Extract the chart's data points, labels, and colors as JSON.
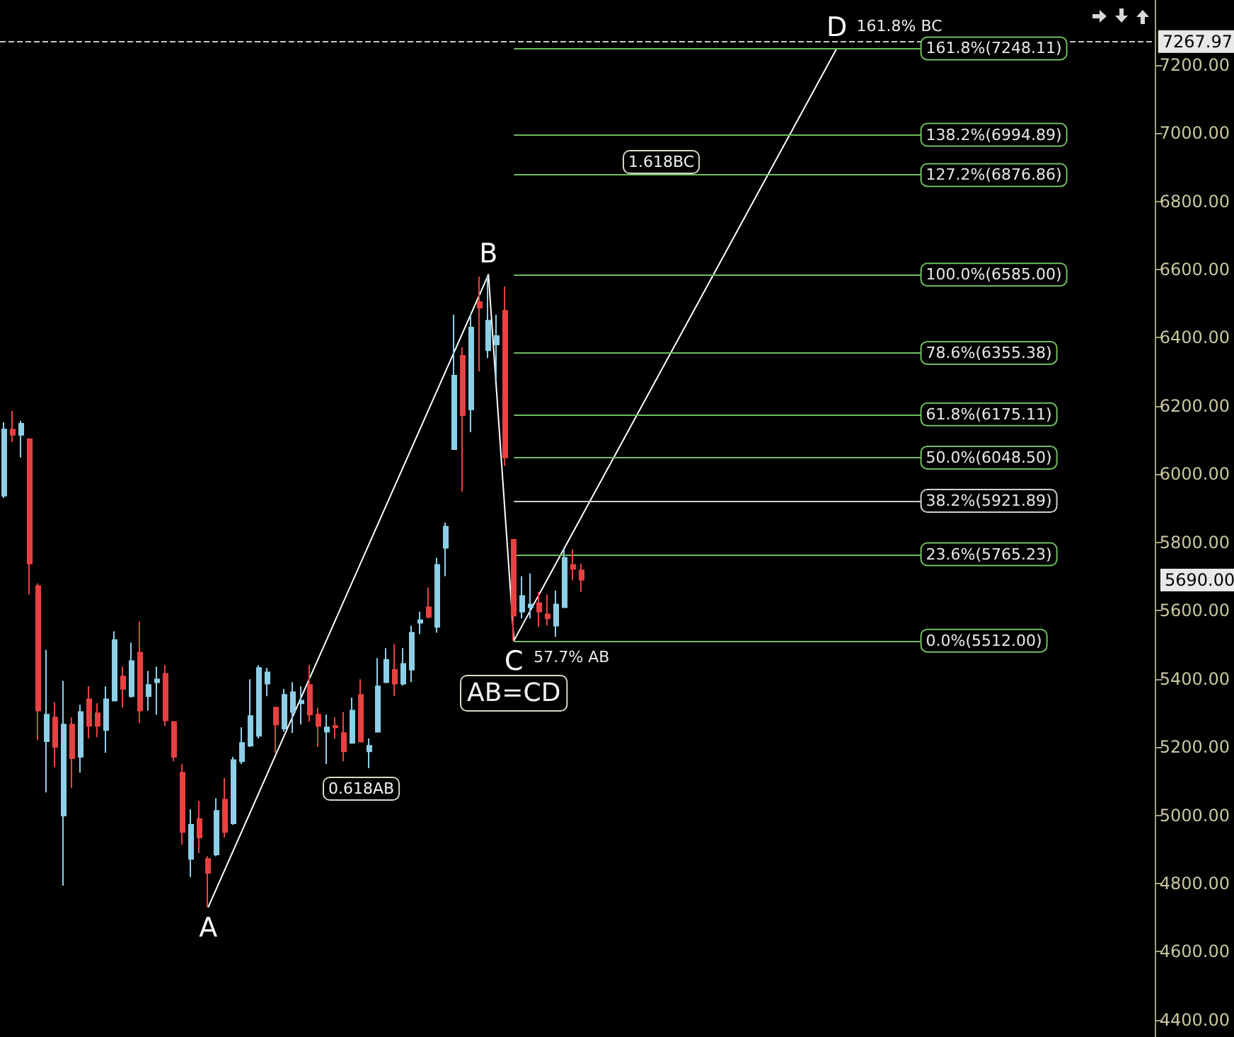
{
  "chart_data": {
    "type": "candlestick",
    "tick_labels": "y",
    "categories": [
      null,
      null,
      null,
      null,
      null,
      null,
      null,
      null,
      null,
      null,
      null,
      null,
      null,
      null,
      null,
      null,
      null,
      null,
      null,
      null,
      null,
      null,
      null,
      null,
      null,
      null,
      null,
      null,
      null,
      null,
      null,
      null,
      null,
      null,
      null,
      null,
      null,
      null,
      null,
      null,
      null,
      null,
      null,
      null,
      null,
      null,
      null,
      null,
      null,
      null,
      null,
      null,
      null,
      null,
      null,
      null,
      null,
      null,
      null,
      null,
      null,
      null,
      null,
      null,
      null,
      null,
      null,
      null,
      null,
      null,
      null,
      null,
      null,
      null,
      null,
      null,
      null,
      null,
      null,
      null,
      null,
      null,
      null,
      null,
      null,
      null,
      null,
      null,
      null,
      null,
      null,
      null,
      null,
      null,
      null,
      null,
      null,
      null,
      null,
      null,
      null,
      null,
      null,
      null,
      null,
      null,
      null,
      null,
      null,
      null,
      null,
      null,
      null,
      null,
      null,
      null,
      null,
      null,
      null,
      null,
      null,
      null,
      null,
      null,
      null,
      null,
      null,
      null,
      null,
      null,
      null,
      null,
      null,
      null,
      null,
      null
    ],
    "ylim": [
      4350,
      7390
    ],
    "yticks": [
      {
        "value": 4400,
        "label": "4400.00"
      },
      {
        "value": 4600,
        "label": "4600.00"
      },
      {
        "value": 4800,
        "label": "4800.00"
      },
      {
        "value": 5000,
        "label": "5000.00"
      },
      {
        "value": 5200,
        "label": "5200.00"
      },
      {
        "value": 5400,
        "label": "5400.00"
      },
      {
        "value": 5600,
        "label": "5600.00"
      },
      {
        "value": 5800,
        "label": "5800.00"
      },
      {
        "value": 6000,
        "label": "6000.00"
      },
      {
        "value": 6200,
        "label": "6200.00"
      },
      {
        "value": 6400,
        "label": "6400.00"
      },
      {
        "value": 6600,
        "label": "6600.00"
      },
      {
        "value": 6800,
        "label": "6800.00"
      },
      {
        "value": 7000,
        "label": "7000.00"
      },
      {
        "value": 7200,
        "label": "7200.00"
      }
    ],
    "series": [
      {
        "colors": [
          "#8ecfe8",
          "#e84141",
          "#8ecfe8",
          "#e84141",
          "#e84141",
          "#8ecfe8",
          "#e84141",
          "#8ecfe8",
          "#e84141",
          "#8ecfe8",
          "#e84141",
          "#e84141",
          "#8ecfe8",
          "#8ecfe8",
          "#e84141",
          "#8ecfe8",
          "#e84141",
          "#8ecfe8",
          "#8ecfe8",
          "#e84141",
          "#e84141",
          "#e84141",
          "#8ecfe8",
          "#e84141",
          "#e84141",
          "#8ecfe8",
          "#e84141",
          "#8ecfe8",
          "#8ecfe8",
          "#8ecfe8",
          "#8ecfe8",
          "#8ecfe8",
          "#e84141",
          "#8ecfe8",
          "#8ecfe8",
          "#8ecfe8",
          "#e84141",
          "#e84141",
          "#8ecfe8",
          "#e84141",
          "#e84141",
          "#8ecfe8",
          "#e84141",
          "#8ecfe8",
          "#8ecfe8",
          "#8ecfe8",
          "#e84141",
          "#8ecfe8",
          "#8ecfe8",
          "#8ecfe8",
          "#e84141",
          "#8ecfe8",
          "#8ecfe8",
          "#8ecfe8",
          "#e84141",
          "#8ecfe8",
          "#e84141",
          "#8ecfe8",
          "#8ecfe8",
          "#e84141",
          "#e84141",
          "#8ecfe8",
          "#8ecfe8",
          "#e84141",
          "#e84141",
          "#8ecfe8",
          "#8ecfe8",
          "#e84141",
          "#e84141",
          null,
          null,
          null,
          null,
          null,
          null,
          null,
          null,
          null,
          null,
          null,
          null,
          null,
          null,
          null,
          null,
          null,
          null,
          null,
          null,
          null,
          null,
          null,
          null,
          null,
          null,
          null,
          null,
          null,
          null,
          null,
          null,
          null,
          null,
          null,
          null,
          null,
          null,
          null,
          null,
          null,
          null,
          null,
          null,
          null,
          null,
          null,
          null,
          null,
          null,
          null,
          null,
          null,
          null,
          null,
          null,
          null,
          null,
          null,
          null,
          null,
          null,
          null,
          null,
          null,
          null,
          null
        ],
        "ohlc": [
          [
            5937,
            6152,
            5930,
            6131
          ],
          [
            6131,
            6185,
            6094,
            6115
          ],
          [
            6115,
            6156,
            6049,
            6148
          ],
          [
            6103,
            6103,
            5647,
            5738
          ],
          [
            5672,
            5680,
            5220,
            5307
          ],
          [
            5217,
            5485,
            5067,
            5295
          ],
          [
            5287,
            5332,
            5142,
            5200
          ],
          [
            4999,
            5394,
            4794,
            5266
          ],
          [
            5266,
            5287,
            5080,
            5167
          ],
          [
            5171,
            5324,
            5125,
            5303
          ],
          [
            5340,
            5378,
            5225,
            5262
          ],
          [
            5299,
            5328,
            5229,
            5262
          ],
          [
            5250,
            5378,
            5183,
            5340
          ],
          [
            5336,
            5539,
            5336,
            5514
          ],
          [
            5407,
            5436,
            5316,
            5370
          ],
          [
            5349,
            5506,
            5345,
            5452
          ],
          [
            5477,
            5568,
            5270,
            5307
          ],
          [
            5349,
            5423,
            5307,
            5382
          ],
          [
            5390,
            5436,
            5295,
            5398
          ],
          [
            5415,
            5440,
            5262,
            5278
          ],
          [
            5274,
            5274,
            5158,
            5171
          ],
          [
            5125,
            5150,
            4914,
            4951
          ],
          [
            4872,
            5017,
            4819,
            4972
          ],
          [
            4989,
            5042,
            4889,
            4935
          ],
          [
            4872,
            4880,
            4730,
            4831
          ],
          [
            4885,
            5050,
            4880,
            5013
          ],
          [
            5046,
            5109,
            4935,
            4951
          ],
          [
            4976,
            5171,
            4972,
            5162
          ],
          [
            5158,
            5258,
            5150,
            5212
          ],
          [
            5204,
            5399,
            5200,
            5291
          ],
          [
            5233,
            5440,
            5225,
            5432
          ],
          [
            5386,
            5432,
            5349,
            5419
          ],
          [
            5316,
            5316,
            5183,
            5266
          ],
          [
            5254,
            5370,
            5245,
            5353
          ],
          [
            5303,
            5390,
            5241,
            5361
          ],
          [
            5328,
            5378,
            5266,
            5336
          ],
          [
            5382,
            5440,
            5274,
            5295
          ],
          [
            5295,
            5316,
            5200,
            5262
          ],
          [
            5245,
            5295,
            5150,
            5258
          ],
          [
            5262,
            5287,
            5225,
            5258
          ],
          [
            5241,
            5303,
            5158,
            5187
          ],
          [
            5212,
            5345,
            5212,
            5307
          ],
          [
            5353,
            5399,
            5216,
            5216
          ],
          [
            5187,
            5225,
            5138,
            5204
          ],
          [
            5245,
            5461,
            5245,
            5378
          ],
          [
            5390,
            5490,
            5390,
            5456
          ],
          [
            5427,
            5502,
            5349,
            5386
          ],
          [
            5386,
            5490,
            5380,
            5444
          ],
          [
            5427,
            5556,
            5390,
            5535
          ],
          [
            5564,
            5597,
            5531,
            5572
          ],
          [
            5610,
            5668,
            5577,
            5581
          ],
          [
            5552,
            5755,
            5535,
            5734
          ],
          [
            5784,
            5858,
            5701,
            5846
          ],
          [
            6073,
            6467,
            6073,
            6289
          ],
          [
            6347,
            6372,
            5949,
            6173
          ],
          [
            6190,
            6467,
            6123,
            6430
          ],
          [
            6504,
            6579,
            6301,
            6488
          ],
          [
            6363,
            6585,
            6340,
            6450
          ],
          [
            6380,
            6467,
            6281,
            6405
          ],
          [
            6479,
            6550,
            6024,
            6049
          ],
          [
            5808,
            5808,
            5512,
            5585
          ],
          [
            5597,
            5701,
            5577,
            5643
          ],
          [
            5610,
            5709,
            5577,
            5618
          ],
          [
            5622,
            5655,
            5552,
            5597
          ],
          [
            5589,
            5647,
            5556,
            5577
          ],
          [
            5556,
            5659,
            5523,
            5618
          ],
          [
            5610,
            5780,
            5610,
            5755
          ],
          [
            5734,
            5780,
            5689,
            5722
          ],
          [
            5718,
            5738,
            5655,
            5690
          ],
          null,
          null,
          null,
          null,
          null,
          null,
          null,
          null,
          null,
          null,
          null,
          null,
          null,
          null,
          null,
          null,
          null,
          null,
          null,
          null,
          null,
          null,
          null,
          null,
          null,
          null,
          null,
          null,
          null,
          null,
          null,
          null,
          null,
          null,
          null,
          null,
          null,
          null,
          null,
          null,
          null,
          null,
          null,
          null,
          null,
          null,
          null,
          null,
          null,
          null,
          null,
          null,
          null,
          null,
          null,
          null,
          null,
          null,
          null,
          null,
          null,
          null,
          null,
          null,
          null,
          null,
          null
        ]
      },
      {
        "type": "line",
        "color": "#ffffff",
        "values": [
          null,
          null,
          null,
          null,
          null,
          null,
          null,
          null,
          null,
          null,
          null,
          null,
          null,
          null,
          null,
          null,
          null,
          null,
          null,
          null,
          null,
          null,
          null,
          null,
          4730,
          null,
          null,
          null,
          null,
          null,
          null,
          null,
          null,
          null,
          null,
          null,
          null,
          null,
          null,
          null,
          null,
          null,
          null,
          null,
          null,
          null,
          null,
          null,
          null,
          null,
          null,
          null,
          null,
          null,
          null,
          null,
          null,
          6585,
          null,
          null,
          5512,
          null,
          null,
          null,
          null,
          null,
          null,
          null,
          null,
          null,
          null,
          null,
          null,
          null,
          null,
          null,
          null,
          null,
          null,
          null,
          null,
          null,
          null,
          null,
          null,
          null,
          null,
          null,
          null,
          null,
          null,
          null,
          null,
          null,
          null,
          null,
          null,
          null,
          7248,
          null,
          null,
          null,
          null,
          null,
          null,
          null,
          null,
          null,
          null,
          null,
          null,
          null,
          null,
          null,
          null,
          null,
          null,
          null,
          null,
          null,
          null,
          null,
          null,
          null,
          null,
          null,
          null,
          null,
          null,
          null,
          null,
          null,
          null,
          null,
          null,
          null
        ],
        "value_labels": [
          null,
          null,
          null,
          null,
          null,
          null,
          null,
          null,
          null,
          null,
          null,
          null,
          null,
          null,
          null,
          null,
          null,
          null,
          null,
          null,
          null,
          null,
          null,
          null,
          "A",
          null,
          null,
          null,
          null,
          null,
          null,
          null,
          null,
          null,
          null,
          null,
          null,
          null,
          null,
          null,
          null,
          null,
          null,
          null,
          null,
          null,
          null,
          null,
          null,
          null,
          null,
          null,
          null,
          null,
          null,
          null,
          null,
          "B",
          null,
          null,
          "C",
          null,
          null,
          null,
          null,
          null,
          null,
          null,
          null,
          null,
          null,
          null,
          null,
          null,
          null,
          null,
          null,
          null,
          null,
          null,
          null,
          null,
          null,
          null,
          null,
          null,
          null,
          null,
          null,
          null,
          null,
          null,
          null,
          null,
          null,
          null,
          null,
          null,
          "D",
          null,
          null,
          null,
          null,
          null,
          null,
          null,
          null,
          null,
          null,
          null,
          null,
          null,
          null,
          null,
          null,
          null,
          null,
          null,
          null,
          null,
          null,
          null,
          null,
          null,
          null,
          null,
          null,
          null,
          null,
          null,
          null,
          null,
          null,
          null,
          null,
          null
        ]
      }
    ],
    "ref_lines": [
      {
        "axis": "y",
        "value": 7267.97,
        "label": "7267.97",
        "color": "#c8c8c8",
        "line_style": "dashed"
      },
      {
        "axis": "y",
        "value": 7248.11,
        "label": "161.8%(7248.11)",
        "color": "#6fbf5f"
      },
      {
        "axis": "y",
        "value": 6994.89,
        "label": "138.2%(6994.89)",
        "color": "#6fbf5f"
      },
      {
        "axis": "y",
        "value": 6876.86,
        "label": "127.2%(6876.86)",
        "color": "#6fbf5f"
      },
      {
        "axis": "y",
        "value": 6585.0,
        "label": "100.0%(6585.00)",
        "color": "#6fbf5f"
      },
      {
        "axis": "y",
        "value": 6355.38,
        "label": "78.6%(6355.38)",
        "color": "#6fbf5f"
      },
      {
        "axis": "y",
        "value": 6175.11,
        "label": "61.8%(6175.11)",
        "color": "#6fbf5f"
      },
      {
        "axis": "y",
        "value": 6048.5,
        "label": "50.0%(6048.50)",
        "color": "#6fbf5f"
      },
      {
        "axis": "y",
        "value": 5921.89,
        "label": "38.2%(5921.89)",
        "color": "#d0d0d0"
      },
      {
        "axis": "y",
        "value": 5765.23,
        "label": "23.6%(5765.23)",
        "color": "#6fbf5f"
      },
      {
        "axis": "y",
        "value": 5512.0,
        "label": "0.0%(5512.00)",
        "color": "#6fbf5f"
      }
    ],
    "annotations": [
      {
        "text": "161.8% BC",
        "y": 7248
      },
      {
        "text": "57.7% AB",
        "y": 5512
      },
      "5690.00",
      "AB=CD",
      "0.618AB",
      "1.618BC"
    ]
  }
}
